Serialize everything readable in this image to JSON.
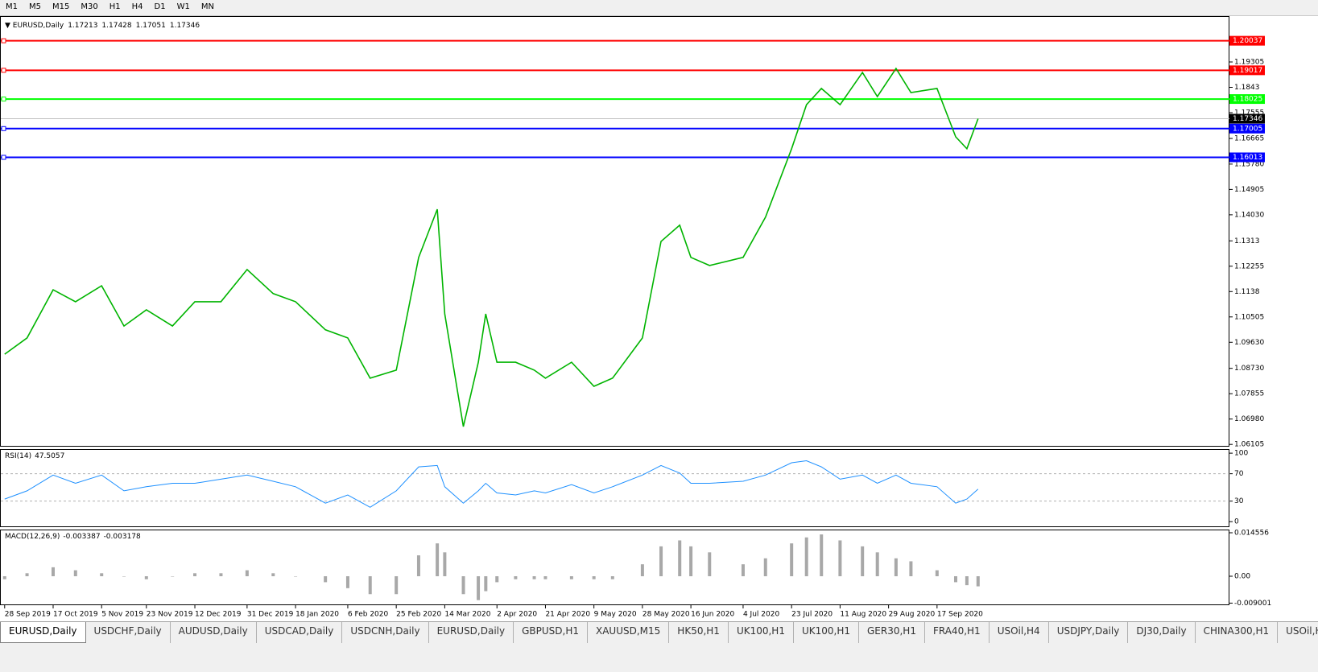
{
  "toolbar": [
    "M1",
    "M5",
    "M15",
    "M30",
    "H1",
    "H4",
    "D1",
    "W1",
    "MN"
  ],
  "chart_data": [
    {
      "type": "line",
      "symbol": "EURUSD,Daily",
      "quote": [
        1.17213,
        1.17428,
        1.17051,
        1.17346
      ],
      "color": "#00b400",
      "x": [
        0,
        6,
        13,
        19,
        26,
        32,
        38,
        45,
        51,
        58,
        65,
        72,
        78,
        86,
        92,
        98,
        105,
        111,
        116,
        118,
        123,
        127,
        129,
        132,
        137,
        142,
        145,
        152,
        158,
        163,
        171,
        176,
        181,
        184,
        189,
        198,
        204,
        211,
        215,
        219,
        224,
        230,
        234,
        239,
        243,
        250,
        255,
        258,
        261
      ],
      "values": [
        1.0922,
        1.0978,
        1.1144,
        1.1103,
        1.1158,
        1.1019,
        1.1075,
        1.1019,
        1.1103,
        1.1103,
        1.1214,
        1.1131,
        1.1103,
        1.1006,
        1.0978,
        1.0839,
        1.0867,
        1.1256,
        1.1422,
        1.1061,
        1.0672,
        1.0894,
        1.1061,
        1.0894,
        1.0894,
        1.0867,
        1.0839,
        1.0894,
        1.0811,
        1.0839,
        1.0978,
        1.1311,
        1.1367,
        1.1256,
        1.1228,
        1.1256,
        1.1395,
        1.1631,
        1.1783,
        1.1839,
        1.1783,
        1.1894,
        1.1811,
        1.1908,
        1.1825,
        1.1839,
        1.1672,
        1.1631,
        1.17346
      ],
      "xlim": [
        -0.6,
        328.4
      ],
      "xticks": [
        {
          "value": 0,
          "label": "28 Sep 2019"
        },
        {
          "value": 13,
          "label": "17 Oct 2019"
        },
        {
          "value": 26,
          "label": "5 Nov 2019"
        },
        {
          "value": 38,
          "label": "23 Nov 2019"
        },
        {
          "value": 51,
          "label": "12 Dec 2019"
        },
        {
          "value": 65,
          "label": "31 Dec 2019"
        },
        {
          "value": 78,
          "label": "18 Jan 2020"
        },
        {
          "value": 92,
          "label": "6 Feb 2020"
        },
        {
          "value": 105,
          "label": "25 Feb 2020"
        },
        {
          "value": 118,
          "label": "14 Mar 2020"
        },
        {
          "value": 132,
          "label": "2 Apr 2020"
        },
        {
          "value": 145,
          "label": "21 Apr 2020"
        },
        {
          "value": 158,
          "label": "9 May 2020"
        },
        {
          "value": 171,
          "label": "28 May 2020"
        },
        {
          "value": 184,
          "label": "16 Jun 2020"
        },
        {
          "value": 198,
          "label": "4 Jul 2020"
        },
        {
          "value": 211,
          "label": "23 Jul 2020"
        },
        {
          "value": 224,
          "label": "11 Aug 2020"
        },
        {
          "value": 237,
          "label": "29 Aug 2020"
        },
        {
          "value": 250,
          "label": "17 Sep 2020"
        }
      ],
      "ylim": [
        1.06027,
        1.20888
      ],
      "yticks": [
        1.19305,
        1.1843,
        1.17555,
        1.16665,
        {
          "value": 1.1578,
          "label": "1.15780"
        },
        1.14905,
        {
          "value": 1.1403,
          "label": "1.14030"
        },
        1.1313,
        1.12255,
        1.1138,
        1.10505,
        {
          "value": 1.0963,
          "label": "1.09630"
        },
        {
          "value": 1.0873,
          "label": "1.08730"
        },
        1.07855,
        {
          "value": 1.0698,
          "label": "1.06980"
        },
        1.06105
      ],
      "levels": [
        {
          "value": 1.20037,
          "color": "#ff0000"
        },
        {
          "value": 1.19017,
          "color": "#ff0000"
        },
        {
          "value": 1.18025,
          "color": "#00ff00"
        },
        {
          "value": 1.17005,
          "color": "#0000ff"
        },
        {
          "value": 1.16013,
          "color": "#0000ff"
        }
      ],
      "current": 1.17346
    },
    {
      "type": "line",
      "title": "RSI(14)",
      "last": 47.5057,
      "color": "#1e90ff",
      "x": [
        0,
        6,
        13,
        19,
        26,
        32,
        38,
        45,
        51,
        58,
        65,
        72,
        78,
        86,
        92,
        98,
        105,
        111,
        116,
        118,
        123,
        127,
        129,
        132,
        137,
        142,
        145,
        152,
        158,
        163,
        171,
        176,
        181,
        184,
        189,
        198,
        204,
        211,
        215,
        219,
        224,
        230,
        234,
        239,
        243,
        250,
        255,
        258,
        261
      ],
      "values": [
        33,
        45,
        68,
        56,
        68,
        45,
        51,
        56,
        56,
        62,
        68,
        59,
        51,
        27,
        39,
        21,
        45,
        80,
        82,
        51,
        27,
        45,
        56,
        42,
        39,
        45,
        42,
        54,
        42,
        51,
        68,
        82,
        71,
        56,
        56,
        59,
        68,
        86,
        89,
        80,
        62,
        68,
        56,
        68,
        56,
        51,
        27,
        33,
        47.5057
      ],
      "xlim": [
        -0.6,
        328.4
      ],
      "ylim": [
        -8,
        106
      ],
      "yticks": [
        100,
        70,
        30,
        0
      ],
      "levels": [
        70,
        30
      ]
    },
    {
      "type": "bar",
      "title": "MACD(12,26,9)",
      "main": -0.003387,
      "signal": -0.003178,
      "color": "#a8a8a8",
      "x": [
        0,
        6,
        13,
        19,
        26,
        32,
        38,
        45,
        51,
        58,
        65,
        72,
        78,
        86,
        92,
        98,
        105,
        111,
        116,
        118,
        123,
        127,
        129,
        132,
        137,
        142,
        145,
        152,
        158,
        163,
        171,
        176,
        181,
        184,
        189,
        198,
        204,
        211,
        215,
        219,
        224,
        230,
        234,
        239,
        243,
        250,
        255,
        258,
        261
      ],
      "values": [
        -0.001,
        0.001,
        0.003,
        0.002,
        0.001,
        0.0,
        -0.001,
        0.0,
        0.001,
        0.001,
        0.002,
        0.001,
        0.0,
        -0.002,
        -0.004,
        -0.006,
        -0.006,
        0.007,
        0.011,
        0.008,
        -0.006,
        -0.008,
        -0.005,
        -0.002,
        -0.001,
        -0.001,
        -0.001,
        -0.001,
        -0.001,
        -0.001,
        0.004,
        0.01,
        0.012,
        0.01,
        0.008,
        0.004,
        0.006,
        0.011,
        0.013,
        0.014,
        0.012,
        0.01,
        0.008,
        0.006,
        0.005,
        0.002,
        -0.002,
        -0.003,
        -0.003387
      ],
      "xlim": [
        -0.6,
        328.4
      ],
      "ylim": [
        -0.0097,
        0.01563
      ],
      "yticks": [
        0.014556,
        {
          "value": 0,
          "label": "0.00"
        },
        -0.009001
      ]
    }
  ],
  "tabs": [
    "EURUSD,Daily",
    "USDCHF,Daily",
    "AUDUSD,Daily",
    "USDCAD,Daily",
    "USDCNH,Daily",
    "EURUSD,Daily",
    "GBPUSD,H1",
    "XAUUSD,M15",
    "HK50,H1",
    "UK100,H1",
    "UK100,H1",
    "GER30,H1",
    "FRA40,H1",
    "USOil,H4",
    "USDJPY,Daily",
    "DJ30,Daily",
    "CHINA300,H1",
    "USOil,H"
  ]
}
